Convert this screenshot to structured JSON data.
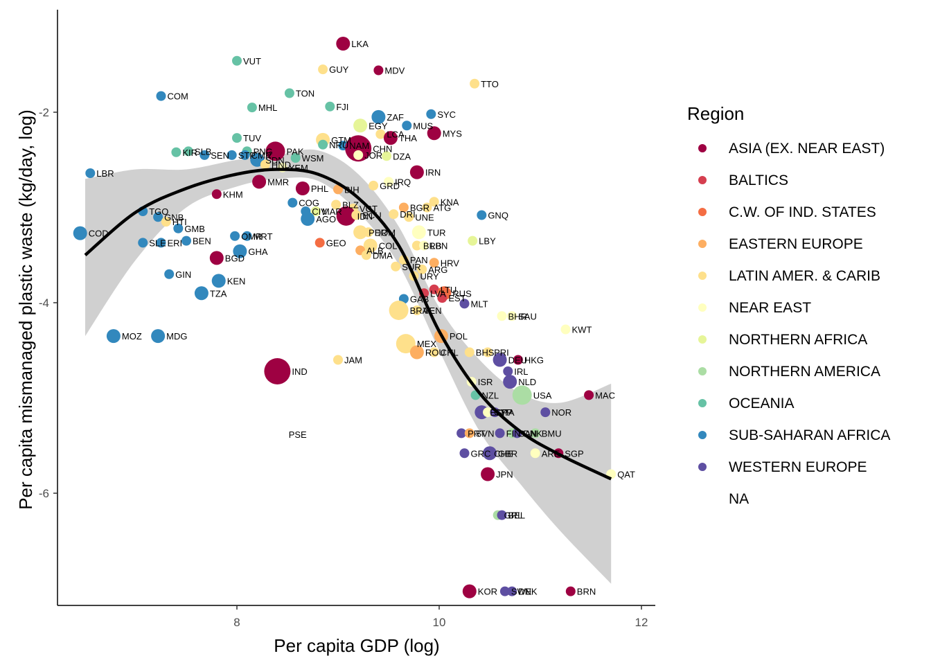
{
  "chart_data": {
    "type": "scatter",
    "xlabel": "Per capita GDP (log)",
    "ylabel": "Per capita mismanaged plastic waste (kg/day, log)",
    "xlim": [
      6.3,
      12.1
    ],
    "ylim": [
      -7.2,
      -1.05
    ],
    "xticks": [
      "8",
      "10",
      "12"
    ],
    "yticks": [
      "-2",
      "-4",
      "-6"
    ],
    "legend": {
      "title": "Region",
      "position": "right",
      "items": [
        {
          "label": "ASIA (EX. NEAR EAST)",
          "color": "#9E0142"
        },
        {
          "label": "BALTICS",
          "color": "#D53E4F"
        },
        {
          "label": "C.W. OF IND. STATES",
          "color": "#F46D43"
        },
        {
          "label": "EASTERN EUROPE",
          "color": "#FDAE61"
        },
        {
          "label": "LATIN AMER. & CARIB",
          "color": "#FEE08B"
        },
        {
          "label": "NEAR EAST",
          "color": "#FFFFBF"
        },
        {
          "label": "NORTHERN AFRICA",
          "color": "#E6F598"
        },
        {
          "label": "NORTHERN AMERICA",
          "color": "#ABDDA4"
        },
        {
          "label": "OCEANIA",
          "color": "#66C2A5"
        },
        {
          "label": "SUB-SAHARAN AFRICA",
          "color": "#3288BD"
        },
        {
          "label": "WESTERN EUROPE",
          "color": "#5E4FA2"
        },
        {
          "label": "NA",
          "color": "#ffffff"
        }
      ]
    },
    "smooth": {
      "x": [
        6.5,
        7.0,
        7.5,
        8.0,
        8.4,
        8.8,
        9.2,
        9.6,
        10.0,
        10.4,
        10.8,
        11.2,
        11.7
      ],
      "y": [
        -3.5,
        -3.05,
        -2.8,
        -2.65,
        -2.6,
        -2.65,
        -2.9,
        -3.4,
        -4.3,
        -4.95,
        -5.35,
        -5.6,
        -5.85
      ],
      "lower": [
        -4.35,
        -3.55,
        -3.0,
        -2.78,
        -2.7,
        -2.72,
        -3.05,
        -3.6,
        -4.5,
        -5.35,
        -5.9,
        -6.4,
        -6.95
      ],
      "upper": [
        -2.7,
        -2.6,
        -2.6,
        -2.5,
        -2.45,
        -2.4,
        -2.65,
        -3.2,
        -4.05,
        -4.6,
        -4.95,
        -5.05,
        -4.85
      ]
    },
    "points": [
      {
        "code": "LKA",
        "x": 9.05,
        "y": -1.28,
        "r": 0,
        "s": 2
      },
      {
        "code": "VUT",
        "x": 8.0,
        "y": -1.46,
        "r": 8,
        "s": 1
      },
      {
        "code": "GUY",
        "x": 8.85,
        "y": -1.55,
        "r": 4,
        "s": 1
      },
      {
        "code": "MDV",
        "x": 9.4,
        "y": -1.56,
        "r": 0,
        "s": 1
      },
      {
        "code": "TTO",
        "x": 10.35,
        "y": -1.7,
        "r": 4,
        "s": 1
      },
      {
        "code": "COM",
        "x": 7.25,
        "y": -1.83,
        "r": 9,
        "s": 1
      },
      {
        "code": "TON",
        "x": 8.52,
        "y": -1.8,
        "r": 8,
        "s": 1
      },
      {
        "code": "MHL",
        "x": 8.15,
        "y": -1.95,
        "r": 8,
        "s": 1
      },
      {
        "code": "FJI",
        "x": 8.92,
        "y": -1.94,
        "r": 8,
        "s": 1
      },
      {
        "code": "SYC",
        "x": 9.92,
        "y": -2.02,
        "r": 9,
        "s": 1
      },
      {
        "code": "ZAF",
        "x": 9.4,
        "y": -2.05,
        "r": 9,
        "s": 2
      },
      {
        "code": "EGY",
        "x": 9.22,
        "y": -2.14,
        "r": 6,
        "s": 2
      },
      {
        "code": "MUS",
        "x": 9.68,
        "y": -2.14,
        "r": 9,
        "s": 1
      },
      {
        "code": "LCA",
        "x": 9.42,
        "y": -2.23,
        "r": 4,
        "s": 1
      },
      {
        "code": "MYS",
        "x": 9.95,
        "y": -2.22,
        "r": 0,
        "s": 2
      },
      {
        "code": "THA",
        "x": 9.52,
        "y": -2.27,
        "r": 0,
        "s": 2
      },
      {
        "code": "TUV",
        "x": 8.0,
        "y": -2.27,
        "r": 8,
        "s": 1
      },
      {
        "code": "GTM",
        "x": 8.85,
        "y": -2.29,
        "r": 4,
        "s": 2
      },
      {
        "code": "NRU",
        "x": 8.85,
        "y": -2.34,
        "r": 8,
        "s": 1
      },
      {
        "code": "NAM",
        "x": 9.05,
        "y": -2.35,
        "r": 9,
        "s": 1
      },
      {
        "code": "CHN",
        "x": 9.2,
        "y": -2.38,
        "r": 0,
        "s": 4
      },
      {
        "code": "KIR",
        "x": 7.4,
        "y": -2.42,
        "r": 8,
        "s": 1
      },
      {
        "code": "SLB",
        "x": 7.52,
        "y": -2.41,
        "r": 8,
        "s": 1
      },
      {
        "code": "PNG",
        "x": 8.1,
        "y": -2.41,
        "r": 8,
        "s": 1
      },
      {
        "code": "PAK",
        "x": 8.38,
        "y": -2.41,
        "r": 0,
        "s": 3
      },
      {
        "code": "SEN",
        "x": 7.68,
        "y": -2.45,
        "r": 9,
        "s": 1
      },
      {
        "code": "STP",
        "x": 7.95,
        "y": -2.45,
        "r": 9,
        "s": 1
      },
      {
        "code": "CMR",
        "x": 8.08,
        "y": -2.45,
        "r": 9,
        "s": 1
      },
      {
        "code": "SDN",
        "x": 8.2,
        "y": -2.5,
        "r": 9,
        "s": 2
      },
      {
        "code": "WSM",
        "x": 8.58,
        "y": -2.48,
        "r": 8,
        "s": 1
      },
      {
        "code": "JOR",
        "x": 9.2,
        "y": -2.45,
        "r": 5,
        "s": 1
      },
      {
        "code": "DZA",
        "x": 9.48,
        "y": -2.46,
        "r": 6,
        "s": 1
      },
      {
        "code": "HND",
        "x": 8.28,
        "y": -2.55,
        "r": 4,
        "s": 1
      },
      {
        "code": "YEM",
        "x": 8.45,
        "y": -2.58,
        "r": 5,
        "s": 1
      },
      {
        "code": "LBR",
        "x": 6.55,
        "y": -2.64,
        "r": 9,
        "s": 1
      },
      {
        "code": "IRN",
        "x": 9.78,
        "y": -2.63,
        "r": 0,
        "s": 2
      },
      {
        "code": "IRQ",
        "x": 9.5,
        "y": -2.73,
        "r": 5,
        "s": 1
      },
      {
        "code": "GRD",
        "x": 9.35,
        "y": -2.77,
        "r": 4,
        "s": 1
      },
      {
        "code": "KHM",
        "x": 7.8,
        "y": -2.86,
        "r": 0,
        "s": 1
      },
      {
        "code": "MMR",
        "x": 8.22,
        "y": -2.73,
        "r": 0,
        "s": 2
      },
      {
        "code": "PHL",
        "x": 8.65,
        "y": -2.8,
        "r": 0,
        "s": 2
      },
      {
        "code": "BIH",
        "x": 9.0,
        "y": -2.81,
        "r": 3,
        "s": 1
      },
      {
        "code": "KNA",
        "x": 9.95,
        "y": -2.94,
        "r": 4,
        "s": 1
      },
      {
        "code": "COG",
        "x": 8.55,
        "y": -2.95,
        "r": 9,
        "s": 1
      },
      {
        "code": "BLZ",
        "x": 8.98,
        "y": -2.97,
        "r": 4,
        "s": 1
      },
      {
        "code": "VCT",
        "x": 9.15,
        "y": -3.01,
        "r": 4,
        "s": 1
      },
      {
        "code": "BGR",
        "x": 9.65,
        "y": -3.0,
        "r": 3,
        "s": 1
      },
      {
        "code": "ATG",
        "x": 9.88,
        "y": -3.0,
        "r": 4,
        "s": 1
      },
      {
        "code": "TGO",
        "x": 7.07,
        "y": -3.04,
        "r": 9,
        "s": 1
      },
      {
        "code": "CIV",
        "x": 8.68,
        "y": -3.04,
        "r": 9,
        "s": 1
      },
      {
        "code": "MAR",
        "x": 8.78,
        "y": -3.04,
        "r": 6,
        "s": 1
      },
      {
        "code": "GNQ",
        "x": 10.42,
        "y": -3.08,
        "r": 9,
        "s": 1
      },
      {
        "code": "IDN",
        "x": 9.08,
        "y": -3.09,
        "r": 0,
        "s": 3
      },
      {
        "code": "ECU",
        "x": 9.18,
        "y": -3.08,
        "r": 4,
        "s": 1
      },
      {
        "code": "DRI",
        "x": 9.55,
        "y": -3.07,
        "r": 4,
        "s": 1
      },
      {
        "code": "UNE",
        "x": 9.7,
        "y": -3.1,
        "r": 4,
        "s": 1
      },
      {
        "code": "GNB",
        "x": 7.22,
        "y": -3.1,
        "r": 9,
        "s": 1
      },
      {
        "code": "AGO",
        "x": 8.7,
        "y": -3.12,
        "r": 9,
        "s": 2
      },
      {
        "code": "HTI",
        "x": 7.3,
        "y": -3.15,
        "r": 4,
        "s": 1
      },
      {
        "code": "GMB",
        "x": 7.42,
        "y": -3.22,
        "r": 9,
        "s": 1
      },
      {
        "code": "COD",
        "x": 6.45,
        "y": -3.27,
        "r": 9,
        "s": 2
      },
      {
        "code": "OMR",
        "x": 7.98,
        "y": -3.3,
        "r": 9,
        "s": 1
      },
      {
        "code": "MRT",
        "x": 8.1,
        "y": -3.3,
        "r": 9,
        "s": 1
      },
      {
        "code": "PER",
        "x": 9.22,
        "y": -3.26,
        "r": 4,
        "s": 2
      },
      {
        "code": "DOM",
        "x": 9.3,
        "y": -3.26,
        "r": 4,
        "s": 1
      },
      {
        "code": "TUR",
        "x": 9.8,
        "y": -3.26,
        "r": 5,
        "s": 2
      },
      {
        "code": "BEN",
        "x": 7.5,
        "y": -3.35,
        "r": 9,
        "s": 1
      },
      {
        "code": "SLE",
        "x": 7.07,
        "y": -3.37,
        "r": 9,
        "s": 1
      },
      {
        "code": "ERI",
        "x": 7.25,
        "y": -3.37,
        "r": 9,
        "s": 1
      },
      {
        "code": "LBY",
        "x": 10.33,
        "y": -3.35,
        "r": 6,
        "s": 1
      },
      {
        "code": "GEO",
        "x": 8.82,
        "y": -3.37,
        "r": 2,
        "s": 1
      },
      {
        "code": "COL",
        "x": 9.32,
        "y": -3.4,
        "r": 4,
        "s": 2
      },
      {
        "code": "BRB",
        "x": 9.78,
        "y": -3.4,
        "r": 4,
        "s": 1
      },
      {
        "code": "LBN",
        "x": 9.85,
        "y": -3.4,
        "r": 5,
        "s": 1
      },
      {
        "code": "GHA",
        "x": 8.03,
        "y": -3.46,
        "r": 9,
        "s": 2
      },
      {
        "code": "ALB",
        "x": 9.22,
        "y": -3.45,
        "r": 3,
        "s": 1
      },
      {
        "code": "DMA",
        "x": 9.28,
        "y": -3.5,
        "r": 4,
        "s": 1
      },
      {
        "code": "BGD",
        "x": 7.8,
        "y": -3.53,
        "r": 0,
        "s": 2
      },
      {
        "code": "PAN",
        "x": 9.65,
        "y": -3.55,
        "r": 4,
        "s": 1
      },
      {
        "code": "HRV",
        "x": 9.95,
        "y": -3.58,
        "r": 3,
        "s": 1
      },
      {
        "code": "SUR",
        "x": 9.57,
        "y": -3.62,
        "r": 4,
        "s": 1
      },
      {
        "code": "ARG",
        "x": 9.83,
        "y": -3.65,
        "r": 4,
        "s": 1
      },
      {
        "code": "GIN",
        "x": 7.33,
        "y": -3.7,
        "r": 9,
        "s": 1
      },
      {
        "code": "URY",
        "x": 9.75,
        "y": -3.72,
        "r": 4,
        "s": 1
      },
      {
        "code": "KEN",
        "x": 7.82,
        "y": -3.77,
        "r": 9,
        "s": 2
      },
      {
        "code": "LTU",
        "x": 9.95,
        "y": -3.86,
        "r": 1,
        "s": 1
      },
      {
        "code": "RUS",
        "x": 10.05,
        "y": -3.9,
        "r": 2,
        "s": 2
      },
      {
        "code": "TZA",
        "x": 7.65,
        "y": -3.9,
        "r": 9,
        "s": 2
      },
      {
        "code": "LVA",
        "x": 9.85,
        "y": -3.9,
        "r": 1,
        "s": 1
      },
      {
        "code": "EST",
        "x": 10.03,
        "y": -3.95,
        "r": 1,
        "s": 1
      },
      {
        "code": "GAB",
        "x": 9.65,
        "y": -3.96,
        "r": 9,
        "s": 1
      },
      {
        "code": "MLT",
        "x": 10.25,
        "y": -4.01,
        "r": 10,
        "s": 1
      },
      {
        "code": "BRA",
        "x": 9.6,
        "y": -4.08,
        "r": 4,
        "s": 3
      },
      {
        "code": "VEN",
        "x": 9.78,
        "y": -4.08,
        "r": 4,
        "s": 1
      },
      {
        "code": "BHR",
        "x": 10.62,
        "y": -4.14,
        "r": 5,
        "s": 1
      },
      {
        "code": "SAU",
        "x": 10.72,
        "y": -4.14,
        "r": 5,
        "s": 1
      },
      {
        "code": "KWT",
        "x": 11.25,
        "y": -4.28,
        "r": 5,
        "s": 1
      },
      {
        "code": "MOZ",
        "x": 6.78,
        "y": -4.35,
        "r": 9,
        "s": 2
      },
      {
        "code": "MDG",
        "x": 7.22,
        "y": -4.35,
        "r": 9,
        "s": 2
      },
      {
        "code": "POL",
        "x": 10.02,
        "y": -4.35,
        "r": 3,
        "s": 2
      },
      {
        "code": "MEX",
        "x": 9.67,
        "y": -4.43,
        "r": 4,
        "s": 3
      },
      {
        "code": "ROU",
        "x": 9.78,
        "y": -4.52,
        "r": 3,
        "s": 2
      },
      {
        "code": "CHL",
        "x": 9.95,
        "y": -4.52,
        "r": 4,
        "s": 1
      },
      {
        "code": "BHS",
        "x": 10.3,
        "y": -4.52,
        "r": 4,
        "s": 1
      },
      {
        "code": "PRI",
        "x": 10.48,
        "y": -4.52,
        "r": 4,
        "s": 1
      },
      {
        "code": "JAM",
        "x": 9.0,
        "y": -4.6,
        "r": 4,
        "s": 1
      },
      {
        "code": "DEU",
        "x": 10.6,
        "y": -4.6,
        "r": 10,
        "s": 2
      },
      {
        "code": "HKG",
        "x": 10.78,
        "y": -4.6,
        "r": 0,
        "s": 1
      },
      {
        "code": "IRL",
        "x": 10.68,
        "y": -4.72,
        "r": 10,
        "s": 1
      },
      {
        "code": "IND",
        "x": 8.4,
        "y": -4.72,
        "r": 0,
        "s": 4
      },
      {
        "code": "ISR",
        "x": 10.32,
        "y": -4.83,
        "r": 5,
        "s": 1
      },
      {
        "code": "NLD",
        "x": 10.7,
        "y": -4.83,
        "r": 10,
        "s": 2
      },
      {
        "code": "NZL",
        "x": 10.36,
        "y": -4.97,
        "r": 8,
        "s": 1
      },
      {
        "code": "USA",
        "x": 10.82,
        "y": -4.97,
        "r": 7,
        "s": 3
      },
      {
        "code": "MAC",
        "x": 11.48,
        "y": -4.97,
        "r": 0,
        "s": 1
      },
      {
        "code": "ESP",
        "x": 10.42,
        "y": -5.15,
        "r": 10,
        "s": 2
      },
      {
        "code": "CYP",
        "x": 10.48,
        "y": -5.15,
        "r": 5,
        "s": 1
      },
      {
        "code": "ITA",
        "x": 10.55,
        "y": -5.15,
        "r": 10,
        "s": 1
      },
      {
        "code": "NOR",
        "x": 11.05,
        "y": -5.15,
        "r": 10,
        "s": 1
      },
      {
        "code": "PSE",
        "x": 8.45,
        "y": -5.38,
        "r": 11,
        "s": 1
      },
      {
        "code": "PRT",
        "x": 10.22,
        "y": -5.37,
        "r": 10,
        "s": 1
      },
      {
        "code": "SVN",
        "x": 10.3,
        "y": -5.37,
        "r": 3,
        "s": 1
      },
      {
        "code": "FIN",
        "x": 10.6,
        "y": -5.37,
        "r": 10,
        "s": 1
      },
      {
        "code": "CAN",
        "x": 10.72,
        "y": -5.37,
        "r": 7,
        "s": 1
      },
      {
        "code": "DNK",
        "x": 10.77,
        "y": -5.37,
        "r": 10,
        "s": 1
      },
      {
        "code": "BMU",
        "x": 10.95,
        "y": -5.37,
        "r": 7,
        "s": 1
      },
      {
        "code": "GRC",
        "x": 10.25,
        "y": -5.58,
        "r": 10,
        "s": 1
      },
      {
        "code": "CHE",
        "x": 10.48,
        "y": -5.58,
        "r": 10,
        "s": 1
      },
      {
        "code": "GBR",
        "x": 10.5,
        "y": -5.58,
        "r": 10,
        "s": 2
      },
      {
        "code": "ARE",
        "x": 10.95,
        "y": -5.58,
        "r": 5,
        "s": 1
      },
      {
        "code": "SGP",
        "x": 11.18,
        "y": -5.58,
        "r": 0,
        "s": 1
      },
      {
        "code": "JPN",
        "x": 10.48,
        "y": -5.8,
        "r": 0,
        "s": 2
      },
      {
        "code": "QAT",
        "x": 11.7,
        "y": -5.8,
        "r": 5,
        "s": 1
      },
      {
        "code": "GRL",
        "x": 10.58,
        "y": -6.23,
        "r": 7,
        "s": 1
      },
      {
        "code": "BEL",
        "x": 10.62,
        "y": -6.23,
        "r": 10,
        "s": 1
      },
      {
        "code": "KOR",
        "x": 10.3,
        "y": -7.03,
        "r": 0,
        "s": 2
      },
      {
        "code": "SWE",
        "x": 10.65,
        "y": -7.03,
        "r": 10,
        "s": 1
      },
      {
        "code": "DNK",
        "x": 10.72,
        "y": -7.03,
        "r": 10,
        "s": 1
      },
      {
        "code": "BRN",
        "x": 11.3,
        "y": -7.03,
        "r": 0,
        "s": 1
      }
    ]
  }
}
